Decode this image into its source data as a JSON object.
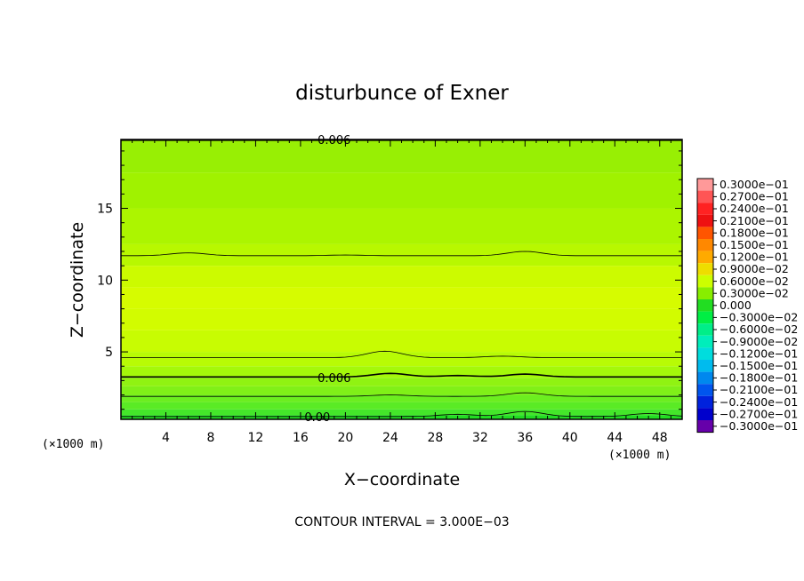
{
  "chart_data": {
    "type": "heatmap",
    "title": "disturbunce of Exner",
    "xlabel": "X−coordinate",
    "ylabel": "Z−coordinate",
    "x_unit": "(×1000 m)",
    "y_unit": "(×1000 m)",
    "xlim": [
      0,
      50
    ],
    "ylim": [
      0.3,
      19.8
    ],
    "x_ticks": [
      4,
      8,
      12,
      16,
      20,
      24,
      28,
      32,
      36,
      40,
      44,
      48
    ],
    "y_ticks": [
      5,
      10,
      15
    ],
    "footer": "CONTOUR INTERVAL = 3.000E−03",
    "contour_labels": [
      {
        "text": "0.006",
        "x": 19,
        "z": 19.8
      },
      {
        "text": "0.006",
        "x": 19,
        "z": 3.2
      },
      {
        "text": "0.00",
        "x": 17.5,
        "z": 0.5
      }
    ],
    "colorbar": {
      "labels": [
        "0.3000e−01",
        "0.2700e−01",
        "0.2400e−01",
        "0.2100e−01",
        "0.1800e−01",
        "0.1500e−01",
        "0.1200e−01",
        "0.9000e−02",
        "0.6000e−02",
        "0.3000e−02",
        "0.000",
        "−0.3000e−02",
        "−0.6000e−02",
        "−0.9000e−02",
        "−0.1200e−01",
        "−0.1500e−01",
        "−0.1800e−01",
        "−0.2100e−01",
        "−0.2400e−01",
        "−0.2700e−01",
        "−0.3000e−01"
      ],
      "colors": [
        "#ff9999",
        "#ff5555",
        "#ff2222",
        "#ee1111",
        "#ff5500",
        "#ff8800",
        "#ffaa00",
        "#eedd00",
        "#ccff00",
        "#88ee00",
        "#22dd22",
        "#00ee44",
        "#00ee88",
        "#00eebb",
        "#00dddd",
        "#00bbee",
        "#0088ee",
        "#0055ee",
        "#0022dd",
        "#0000cc",
        "#6600aa"
      ]
    },
    "bands": [
      {
        "z0": 0.3,
        "z1": 0.6,
        "color": "#22dd22"
      },
      {
        "z0": 0.6,
        "z1": 1.0,
        "color": "#44e62a"
      },
      {
        "z0": 1.0,
        "z1": 1.5,
        "color": "#5aeb25"
      },
      {
        "z0": 1.5,
        "z1": 2.0,
        "color": "#6cee20"
      },
      {
        "z0": 2.0,
        "z1": 2.6,
        "color": "#80f018"
      },
      {
        "z0": 2.6,
        "z1": 3.2,
        "color": "#90f312"
      },
      {
        "z0": 3.2,
        "z1": 4.0,
        "color": "#a4f80a"
      },
      {
        "z0": 4.0,
        "z1": 5.0,
        "color": "#b8fb05"
      },
      {
        "z0": 5.0,
        "z1": 6.5,
        "color": "#c8fc02"
      },
      {
        "z0": 6.5,
        "z1": 8.0,
        "color": "#d2fc00"
      },
      {
        "z0": 8.0,
        "z1": 9.5,
        "color": "#d6fc00"
      },
      {
        "z0": 9.5,
        "z1": 11.0,
        "color": "#ccfb00"
      },
      {
        "z0": 11.0,
        "z1": 12.5,
        "color": "#b8f800"
      },
      {
        "z0": 12.5,
        "z1": 15.0,
        "color": "#acf500"
      },
      {
        "z0": 15.0,
        "z1": 17.5,
        "color": "#a0f200"
      },
      {
        "z0": 17.5,
        "z1": 19.8,
        "color": "#98ef04"
      }
    ],
    "contours": [
      {
        "z": 0.5,
        "weight": "thin",
        "bumps": [
          [
            36,
            0.35
          ],
          [
            47,
            0.2
          ],
          [
            30,
            0.15
          ]
        ]
      },
      {
        "z": 1.9,
        "weight": "thin",
        "bumps": [
          [
            36,
            0.25
          ],
          [
            24,
            0.1
          ]
        ]
      },
      {
        "z": 3.25,
        "weight": "thick",
        "bumps": [
          [
            24,
            0.25
          ],
          [
            36,
            0.2
          ],
          [
            30,
            0.1
          ]
        ]
      },
      {
        "z": 4.6,
        "weight": "thin",
        "bumps": [
          [
            23.5,
            0.45
          ],
          [
            34,
            0.1
          ]
        ]
      },
      {
        "z": 11.7,
        "weight": "thin",
        "bumps": [
          [
            6,
            0.2
          ],
          [
            36,
            0.3
          ],
          [
            20,
            0.05
          ]
        ]
      },
      {
        "z": 19.75,
        "weight": "thick",
        "bumps": []
      }
    ]
  }
}
